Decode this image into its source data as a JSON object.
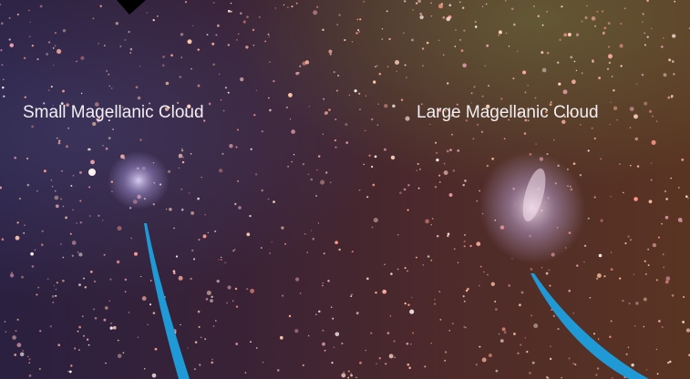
{
  "labels": {
    "small_cloud": "Small Magellanic Cloud",
    "large_cloud": "Large Magellanic Cloud"
  }
}
